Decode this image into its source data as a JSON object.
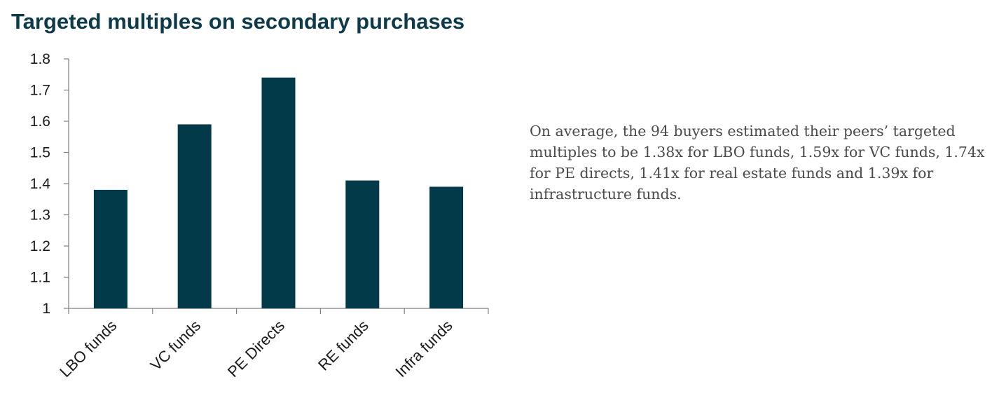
{
  "title": "Targeted multiples on secondary purchases",
  "commentary": "On average, the 94 buyers estimated their peers’ targeted multiples to be 1.38x for LBO funds, 1.59x for VC funds, 1.74x for PE directs, 1.41x for real estate funds and 1.39x for infrastructure funds.",
  "colors": {
    "bar": "#033a4a",
    "title": "#0d3a4a",
    "axis": "#808080"
  },
  "chart_data": {
    "type": "bar",
    "title": "Targeted multiples on secondary purchases",
    "categories": [
      "LBO funds",
      "VC funds",
      "PE Directs",
      "RE funds",
      "Infra funds"
    ],
    "values": [
      1.38,
      1.59,
      1.74,
      1.41,
      1.39
    ],
    "xlabel": "",
    "ylabel": "",
    "ylim": [
      1,
      1.8
    ],
    "yticks": [
      "1",
      "1.1",
      "1.2",
      "1.3",
      "1.4",
      "1.5",
      "1.6",
      "1.7",
      "1.8"
    ],
    "grid": false,
    "legend": "none"
  }
}
